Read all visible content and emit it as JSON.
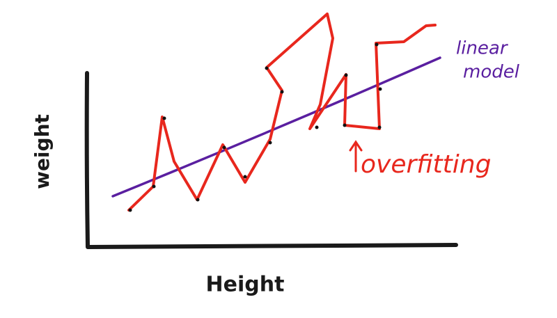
{
  "axes": {
    "y_label": "weight",
    "x_label": "Height"
  },
  "annotations": {
    "linear_model": [
      "linear",
      "model"
    ],
    "overfitting": "overfitting"
  }
}
